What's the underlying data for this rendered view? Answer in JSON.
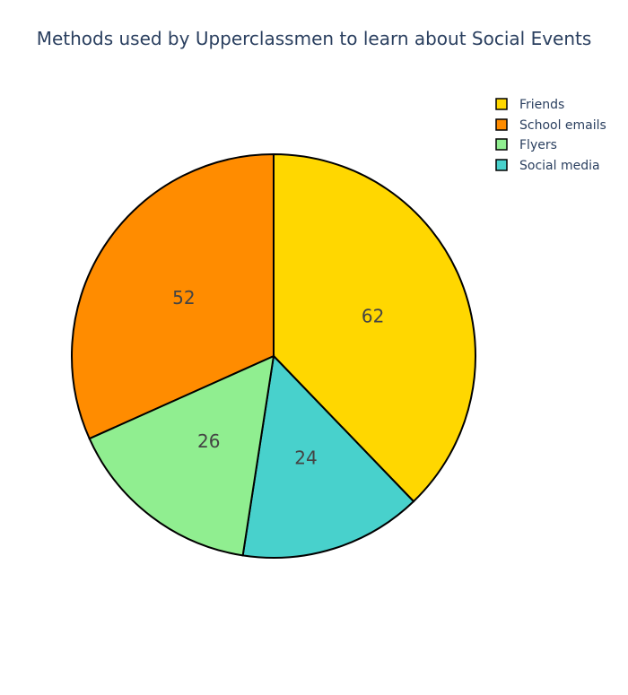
{
  "chart_data": {
    "type": "pie",
    "title": "Methods used by Upperclassmen to learn about Social Events",
    "categories": [
      "Friends",
      "School emails",
      "Flyers",
      "Social media"
    ],
    "values": [
      62,
      52,
      26,
      24
    ],
    "labels_shown": [
      "62",
      "52",
      "26",
      "24"
    ],
    "colors": [
      "#FFD700",
      "#FF8C00",
      "#90EE90",
      "#48D1CC"
    ],
    "legend": {
      "placement": "top-right",
      "entries": [
        "Friends",
        "School emails",
        "Flyers",
        "Social media"
      ]
    },
    "slice_order": [
      "Friends",
      "Social media",
      "Flyers",
      "School emails"
    ],
    "direction": "clockwise",
    "start_angle": "12 o'clock",
    "border_color": "#000000"
  }
}
